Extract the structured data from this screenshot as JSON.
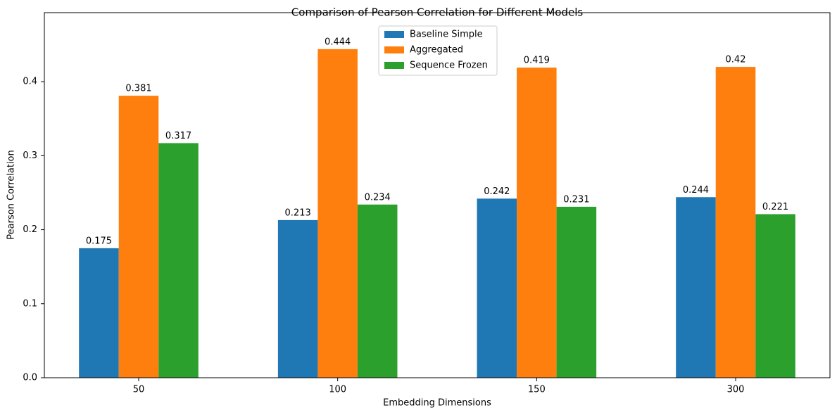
{
  "chart_data": {
    "type": "bar",
    "title": "Comparison of Pearson Correlation for Different Models",
    "x_label": "Embedding Dimensions",
    "y_label": "Pearson Correlation",
    "categories": [
      "50",
      "100",
      "150",
      "300"
    ],
    "series": [
      {
        "name": "Baseline Simple",
        "color": "#1f77b4",
        "values": [
          0.175,
          0.213,
          0.242,
          0.244
        ]
      },
      {
        "name": "Aggregated",
        "color": "#ff7f0e",
        "values": [
          0.381,
          0.444,
          0.419,
          0.42
        ]
      },
      {
        "name": "Sequence Frozen",
        "color": "#2ca02c",
        "values": [
          0.317,
          0.234,
          0.231,
          0.221
        ]
      }
    ],
    "ylim": [
      0,
      0.479
    ],
    "yticks": [
      {
        "value": 0,
        "label": "0.0"
      },
      0.1,
      0.2,
      0.3,
      0.4
    ],
    "grid": false,
    "legend": "upper center"
  }
}
